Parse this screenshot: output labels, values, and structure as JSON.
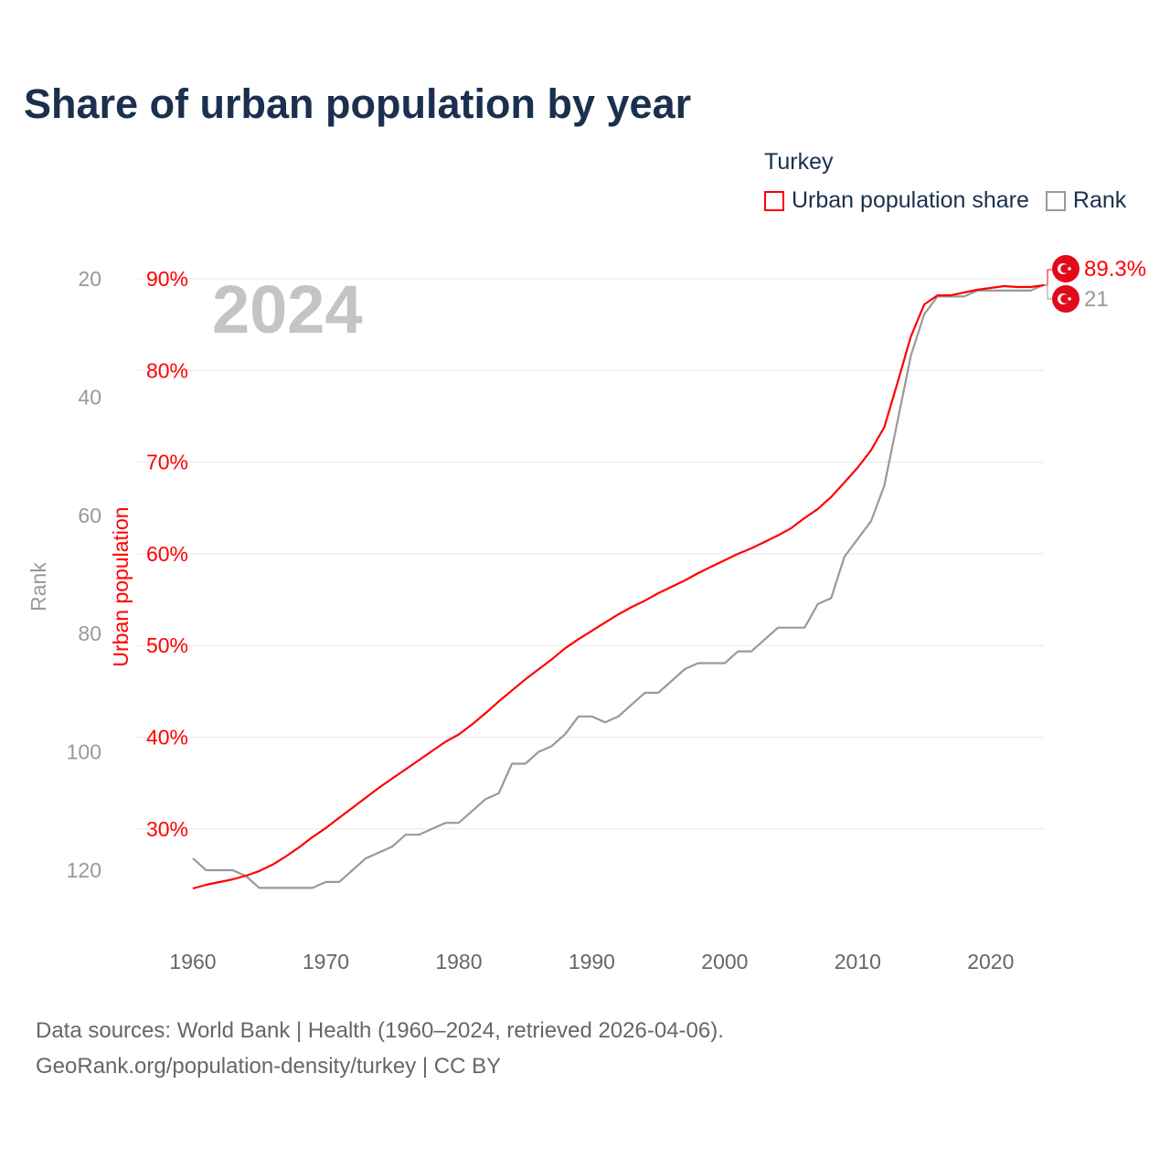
{
  "title": "Share of urban population by year",
  "legend": {
    "title": "Turkey",
    "items": [
      {
        "label": "Urban population share",
        "color": "#ff0000"
      },
      {
        "label": "Rank",
        "color": "#999999"
      }
    ]
  },
  "year_label": "2024",
  "end_labels": {
    "share": "89.3%",
    "rank": "21",
    "flag_icon": "turkey-flag-icon"
  },
  "footer": {
    "line1": "Data sources: World Bank | Health (1960–2024, retrieved 2026-04-06).",
    "line2": "GeoRank.org/population-density/turkey | CC BY"
  },
  "chart_data": {
    "type": "line",
    "title": "Share of urban population by year",
    "xlabel": "",
    "ylabel": "Urban population",
    "y2label": "Rank",
    "xlim": [
      1960,
      2024
    ],
    "ylim": [
      20,
      95
    ],
    "y2lim": [
      130,
      20
    ],
    "x_ticks": [
      1960,
      1970,
      1980,
      1990,
      2000,
      2010,
      2020
    ],
    "y_ticks": [
      "30%",
      "40%",
      "50%",
      "60%",
      "70%",
      "80%",
      "90%"
    ],
    "y_tick_values": [
      30,
      40,
      50,
      60,
      70,
      80,
      90
    ],
    "y2_ticks": [
      20,
      40,
      60,
      80,
      100,
      120
    ],
    "grid": true,
    "legend_position": "top-right",
    "x": [
      1960,
      1961,
      1962,
      1963,
      1964,
      1965,
      1966,
      1967,
      1968,
      1969,
      1970,
      1971,
      1972,
      1973,
      1974,
      1975,
      1976,
      1977,
      1978,
      1979,
      1980,
      1981,
      1982,
      1983,
      1984,
      1985,
      1986,
      1987,
      1988,
      1989,
      1990,
      1991,
      1992,
      1993,
      1994,
      1995,
      1996,
      1997,
      1998,
      1999,
      2000,
      2001,
      2002,
      2003,
      2004,
      2005,
      2006,
      2007,
      2008,
      2009,
      2010,
      2011,
      2012,
      2013,
      2014,
      2015,
      2016,
      2017,
      2018,
      2019,
      2020,
      2021,
      2022,
      2023,
      2024
    ],
    "series": [
      {
        "name": "Urban population share",
        "axis": "left",
        "color": "#ff0000",
        "values": [
          23.5,
          23.9,
          24.2,
          24.5,
          24.9,
          25.4,
          26.1,
          27.0,
          28.0,
          29.1,
          30.1,
          31.2,
          32.3,
          33.4,
          34.5,
          35.5,
          36.5,
          37.5,
          38.5,
          39.5,
          40.3,
          41.4,
          42.6,
          43.9,
          45.1,
          46.3,
          47.4,
          48.5,
          49.7,
          50.7,
          51.6,
          52.5,
          53.4,
          54.2,
          54.9,
          55.7,
          56.4,
          57.1,
          57.9,
          58.6,
          59.3,
          60.0,
          60.6,
          61.3,
          62.0,
          62.8,
          63.9,
          64.9,
          66.2,
          67.8,
          69.4,
          71.3,
          73.8,
          78.7,
          83.7,
          87.2,
          88.2,
          88.2,
          88.5,
          88.8,
          89.0,
          89.2,
          89.1,
          89.1,
          89.3
        ]
      },
      {
        "name": "Rank",
        "axis": "right",
        "color": "#999999",
        "values": [
          118,
          120,
          120,
          120,
          121,
          123,
          123,
          123,
          123,
          123,
          122,
          122,
          120,
          118,
          117,
          116,
          114,
          114,
          113,
          112,
          112,
          110,
          108,
          107,
          102,
          102,
          100,
          99,
          97,
          94,
          94,
          95,
          94,
          92,
          90,
          90,
          88,
          86,
          85,
          85,
          85,
          83,
          83,
          81,
          79,
          79,
          79,
          75,
          74,
          67,
          64,
          61,
          55,
          44,
          33,
          26,
          23,
          23,
          23,
          22,
          22,
          22,
          22,
          22,
          21
        ]
      }
    ]
  }
}
